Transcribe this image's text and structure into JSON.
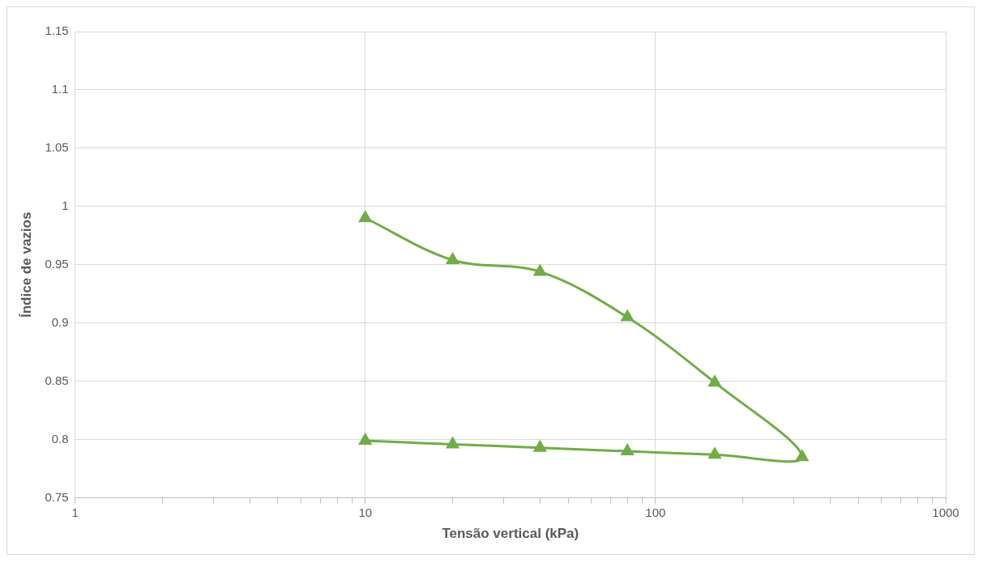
{
  "chart_data": {
    "type": "line",
    "xlabel": "Tensão vertical (kPa)",
    "ylabel": "Índice de vazios",
    "series": [
      {
        "color": "#70ad47",
        "x": [
          10,
          20,
          40,
          80,
          160,
          320,
          160,
          80,
          40,
          20,
          10
        ],
        "values": [
          0.99,
          0.954,
          0.944,
          0.905,
          0.849,
          0.785,
          0.787,
          0.79,
          0.793,
          0.796,
          0.799
        ]
      }
    ],
    "log": "x",
    "xlim": [
      1,
      1000
    ],
    "xticks": [
      1,
      {
        "value": 2,
        "label": null
      },
      {
        "value": 3,
        "label": null
      },
      {
        "value": 4,
        "label": null
      },
      {
        "value": 5,
        "label": null
      },
      {
        "value": 6,
        "label": null
      },
      {
        "value": 7,
        "label": null
      },
      {
        "value": 8,
        "label": null
      },
      {
        "value": 9,
        "label": null
      },
      10,
      {
        "value": 20,
        "label": null
      },
      {
        "value": 30,
        "label": null
      },
      {
        "value": 40,
        "label": null
      },
      {
        "value": 50,
        "label": null
      },
      {
        "value": 60,
        "label": null
      },
      {
        "value": 70,
        "label": null
      },
      {
        "value": 80,
        "label": null
      },
      {
        "value": 90,
        "label": null
      },
      100,
      {
        "value": 200,
        "label": null
      },
      {
        "value": 300,
        "label": null
      },
      {
        "value": 400,
        "label": null
      },
      {
        "value": 500,
        "label": null
      },
      {
        "value": 600,
        "label": null
      },
      {
        "value": 700,
        "label": null
      },
      {
        "value": 800,
        "label": null
      },
      {
        "value": 900,
        "label": null
      },
      1000
    ],
    "ylim": [
      0.75,
      1.15
    ],
    "yticks": [
      0.75,
      0.8,
      0.85,
      0.9,
      0.95,
      1,
      1.05,
      1.1,
      1.15
    ],
    "grid": true,
    "legend": false,
    "marker": "triangle",
    "line_style": "solid"
  }
}
